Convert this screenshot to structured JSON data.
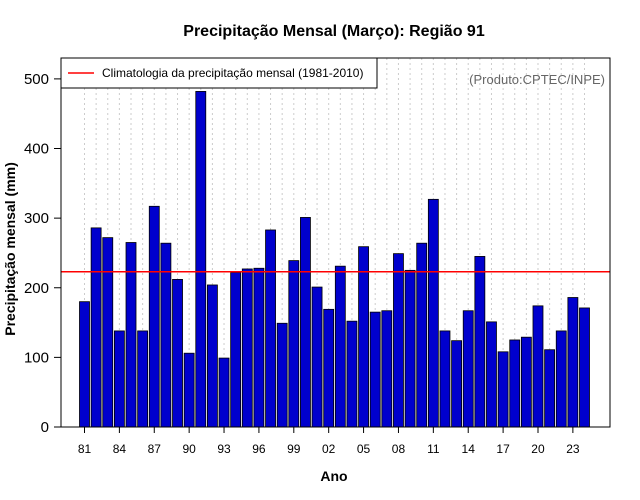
{
  "chart_data": {
    "type": "bar",
    "title": "Precipitação Mensal (Março): Região 91",
    "xlabel": "Ano",
    "ylabel": "Precipitação mensal (mm)",
    "credit": "(Produto:CPTEC/INPE)",
    "ylim": [
      0,
      530
    ],
    "yticks": [
      0,
      100,
      200,
      300,
      400,
      500
    ],
    "categories": [
      "1981",
      "1982",
      "1983",
      "1984",
      "1985",
      "1986",
      "1987",
      "1988",
      "1989",
      "1990",
      "1991",
      "1992",
      "1993",
      "1994",
      "1995",
      "1996",
      "1997",
      "1998",
      "1999",
      "2000",
      "2001",
      "2002",
      "2003",
      "2004",
      "2005",
      "2006",
      "2007",
      "2008",
      "2009",
      "2010",
      "2011",
      "2012",
      "2013",
      "2014",
      "2015",
      "2016",
      "2017",
      "2018",
      "2019",
      "2020",
      "2021",
      "2022",
      "2023",
      "2024"
    ],
    "xtick_labels": [
      {
        "label": "81",
        "index": 0
      },
      {
        "label": "84",
        "index": 3
      },
      {
        "label": "87",
        "index": 6
      },
      {
        "label": "90",
        "index": 9
      },
      {
        "label": "93",
        "index": 12
      },
      {
        "label": "96",
        "index": 15
      },
      {
        "label": "99",
        "index": 18
      },
      {
        "label": "02",
        "index": 21
      },
      {
        "label": "05",
        "index": 24
      },
      {
        "label": "08",
        "index": 27
      },
      {
        "label": "11",
        "index": 30
      },
      {
        "label": "14",
        "index": 33
      },
      {
        "label": "17",
        "index": 36
      },
      {
        "label": "20",
        "index": 39
      },
      {
        "label": "23",
        "index": 42
      }
    ],
    "values": [
      180,
      286,
      272,
      138,
      265,
      138,
      317,
      264,
      212,
      106,
      482,
      204,
      99,
      222,
      227,
      228,
      283,
      149,
      239,
      301,
      201,
      169,
      231,
      152,
      259,
      165,
      167,
      249,
      225,
      264,
      327,
      138,
      124,
      167,
      245,
      151,
      108,
      125,
      129,
      174,
      111,
      138,
      186,
      171
    ],
    "climatology": {
      "label": "Climatologia da precipitação mensal (1981-2010)",
      "value": 223,
      "color": "#ff0000"
    },
    "bar_color": "#0000cd",
    "grid": "vertical-dashed",
    "legend_position": "top-left"
  }
}
